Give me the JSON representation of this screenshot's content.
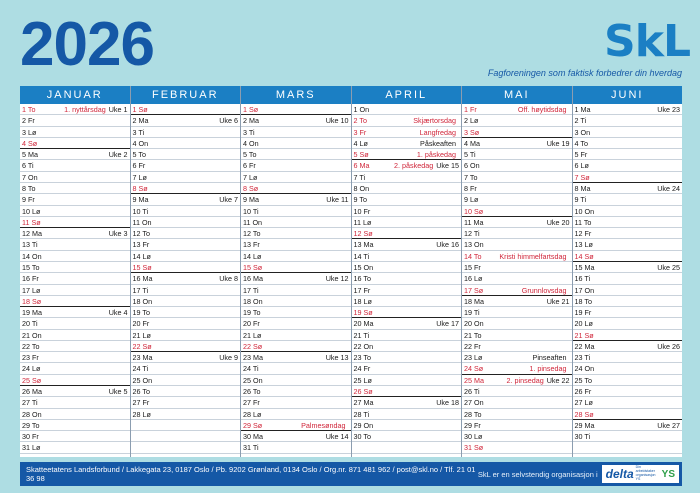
{
  "header": {
    "year": "2026",
    "logo": "SkL",
    "tagline": "Fagforeningen som faktisk forbedrer din hverdag"
  },
  "months": [
    {
      "name": "JANUAR",
      "days": [
        {
          "d": "1 To",
          "h": "1. nyttårsdag",
          "w": "Uke 1",
          "r": true
        },
        {
          "d": "2 Fr"
        },
        {
          "d": "3 Lø"
        },
        {
          "d": "4 Sø",
          "r": true,
          "e": true
        },
        {
          "d": "5 Ma",
          "w": "Uke 2"
        },
        {
          "d": "6 Ti"
        },
        {
          "d": "7 On"
        },
        {
          "d": "8 To"
        },
        {
          "d": "9 Fr"
        },
        {
          "d": "10 Lø"
        },
        {
          "d": "11 Sø",
          "r": true,
          "e": true
        },
        {
          "d": "12 Ma",
          "w": "Uke 3"
        },
        {
          "d": "13 Ti"
        },
        {
          "d": "14 On"
        },
        {
          "d": "15 To"
        },
        {
          "d": "16 Fr"
        },
        {
          "d": "17 Lø"
        },
        {
          "d": "18 Sø",
          "r": true,
          "e": true
        },
        {
          "d": "19 Ma",
          "w": "Uke 4"
        },
        {
          "d": "20 Ti"
        },
        {
          "d": "21 On"
        },
        {
          "d": "22 To"
        },
        {
          "d": "23 Fr"
        },
        {
          "d": "24 Lø"
        },
        {
          "d": "25 Sø",
          "r": true,
          "e": true
        },
        {
          "d": "26 Ma",
          "w": "Uke 5"
        },
        {
          "d": "27 Ti"
        },
        {
          "d": "28 On"
        },
        {
          "d": "29 To"
        },
        {
          "d": "30 Fr"
        },
        {
          "d": "31 Lø"
        }
      ]
    },
    {
      "name": "FEBRUAR",
      "days": [
        {
          "d": "1 Sø",
          "r": true,
          "e": true
        },
        {
          "d": "2 Ma",
          "w": "Uke 6"
        },
        {
          "d": "3 Ti"
        },
        {
          "d": "4 On"
        },
        {
          "d": "5 To"
        },
        {
          "d": "6 Fr"
        },
        {
          "d": "7 Lø"
        },
        {
          "d": "8 Sø",
          "r": true,
          "e": true
        },
        {
          "d": "9 Ma",
          "w": "Uke 7"
        },
        {
          "d": "10 Ti"
        },
        {
          "d": "11 On"
        },
        {
          "d": "12 To"
        },
        {
          "d": "13 Fr"
        },
        {
          "d": "14 Lø"
        },
        {
          "d": "15 Sø",
          "r": true,
          "e": true
        },
        {
          "d": "16 Ma",
          "w": "Uke 8"
        },
        {
          "d": "17 Ti"
        },
        {
          "d": "18 On"
        },
        {
          "d": "19 To"
        },
        {
          "d": "20 Fr"
        },
        {
          "d": "21 Lø"
        },
        {
          "d": "22 Sø",
          "r": true,
          "e": true
        },
        {
          "d": "23 Ma",
          "w": "Uke 9"
        },
        {
          "d": "24 Ti"
        },
        {
          "d": "25 On"
        },
        {
          "d": "26 To"
        },
        {
          "d": "27 Fr"
        },
        {
          "d": "28 Lø"
        },
        {
          "d": ""
        },
        {
          "d": ""
        },
        {
          "d": ""
        }
      ]
    },
    {
      "name": "MARS",
      "days": [
        {
          "d": "1 Sø",
          "r": true,
          "e": true
        },
        {
          "d": "2 Ma",
          "w": "Uke 10"
        },
        {
          "d": "3 Ti"
        },
        {
          "d": "4 On"
        },
        {
          "d": "5 To"
        },
        {
          "d": "6 Fr"
        },
        {
          "d": "7 Lø"
        },
        {
          "d": "8 Sø",
          "r": true,
          "e": true
        },
        {
          "d": "9 Ma",
          "w": "Uke 11"
        },
        {
          "d": "10 Ti"
        },
        {
          "d": "11 On"
        },
        {
          "d": "12 To"
        },
        {
          "d": "13 Fr"
        },
        {
          "d": "14 Lø"
        },
        {
          "d": "15 Sø",
          "r": true,
          "e": true
        },
        {
          "d": "16 Ma",
          "w": "Uke 12"
        },
        {
          "d": "17 Ti"
        },
        {
          "d": "18 On"
        },
        {
          "d": "19 To"
        },
        {
          "d": "20 Fr"
        },
        {
          "d": "21 Lø"
        },
        {
          "d": "22 Sø",
          "r": true,
          "e": true
        },
        {
          "d": "23 Ma",
          "w": "Uke 13"
        },
        {
          "d": "24 Ti"
        },
        {
          "d": "25 On"
        },
        {
          "d": "26 To"
        },
        {
          "d": "27 Fr"
        },
        {
          "d": "28 Lø"
        },
        {
          "d": "29 Sø",
          "h": "Palmesøndag",
          "r": true,
          "e": true
        },
        {
          "d": "30 Ma",
          "w": "Uke 14"
        },
        {
          "d": "31 Ti"
        }
      ]
    },
    {
      "name": "APRIL",
      "days": [
        {
          "d": "1 On"
        },
        {
          "d": "2 To",
          "h": "Skjærtorsdag",
          "r": true
        },
        {
          "d": "3 Fr",
          "h": "Langfredag",
          "r": true
        },
        {
          "d": "4 Lø",
          "h": "Påskeaften"
        },
        {
          "d": "5 Sø",
          "h": "1. påskedag",
          "r": true,
          "e": true
        },
        {
          "d": "6 Ma",
          "h": "2. påskedag",
          "w": "Uke 15",
          "r": true
        },
        {
          "d": "7 Ti"
        },
        {
          "d": "8 On"
        },
        {
          "d": "9 To"
        },
        {
          "d": "10 Fr"
        },
        {
          "d": "11 Lø"
        },
        {
          "d": "12 Sø",
          "r": true,
          "e": true
        },
        {
          "d": "13 Ma",
          "w": "Uke 16"
        },
        {
          "d": "14 Ti"
        },
        {
          "d": "15 On"
        },
        {
          "d": "16 To"
        },
        {
          "d": "17 Fr"
        },
        {
          "d": "18 Lø"
        },
        {
          "d": "19 Sø",
          "r": true,
          "e": true
        },
        {
          "d": "20 Ma",
          "w": "Uke 17"
        },
        {
          "d": "21 Ti"
        },
        {
          "d": "22 On"
        },
        {
          "d": "23 To"
        },
        {
          "d": "24 Fr"
        },
        {
          "d": "25 Lø"
        },
        {
          "d": "26 Sø",
          "r": true,
          "e": true
        },
        {
          "d": "27 Ma",
          "w": "Uke 18"
        },
        {
          "d": "28 Ti"
        },
        {
          "d": "29 On"
        },
        {
          "d": "30 To"
        },
        {
          "d": ""
        }
      ]
    },
    {
      "name": "MAI",
      "days": [
        {
          "d": "1 Fr",
          "h": "Off. høytidsdag",
          "r": true
        },
        {
          "d": "2 Lø"
        },
        {
          "d": "3 Sø",
          "r": true,
          "e": true
        },
        {
          "d": "4 Ma",
          "w": "Uke 19"
        },
        {
          "d": "5 Ti"
        },
        {
          "d": "6 On"
        },
        {
          "d": "7 To"
        },
        {
          "d": "8 Fr"
        },
        {
          "d": "9 Lø"
        },
        {
          "d": "10 Sø",
          "r": true,
          "e": true
        },
        {
          "d": "11 Ma",
          "w": "Uke 20"
        },
        {
          "d": "12 Ti"
        },
        {
          "d": "13 On"
        },
        {
          "d": "14 To",
          "h": "Kristi himmelfartsdag",
          "r": true
        },
        {
          "d": "15 Fr"
        },
        {
          "d": "16 Lø"
        },
        {
          "d": "17 Sø",
          "h": "Grunnlovsdag",
          "r": true,
          "e": true
        },
        {
          "d": "18 Ma",
          "w": "Uke 21"
        },
        {
          "d": "19 Ti"
        },
        {
          "d": "20 On"
        },
        {
          "d": "21 To"
        },
        {
          "d": "22 Fr"
        },
        {
          "d": "23 Lø",
          "h": "Pinseaften"
        },
        {
          "d": "24 Sø",
          "h": "1. pinsedag",
          "r": true,
          "e": true
        },
        {
          "d": "25 Ma",
          "h": "2. pinsedag",
          "w": "Uke 22",
          "r": true
        },
        {
          "d": "26 Ti"
        },
        {
          "d": "27 On"
        },
        {
          "d": "28 To"
        },
        {
          "d": "29 Fr"
        },
        {
          "d": "30 Lø"
        },
        {
          "d": "31 Sø",
          "r": true
        }
      ]
    },
    {
      "name": "JUNI",
      "days": [
        {
          "d": "1 Ma",
          "w": "Uke 23"
        },
        {
          "d": "2 Ti"
        },
        {
          "d": "3 On"
        },
        {
          "d": "4 To"
        },
        {
          "d": "5 Fr"
        },
        {
          "d": "6 Lø"
        },
        {
          "d": "7 Sø",
          "r": true,
          "e": true
        },
        {
          "d": "8 Ma",
          "w": "Uke 24"
        },
        {
          "d": "9 Ti"
        },
        {
          "d": "10 On"
        },
        {
          "d": "11 To"
        },
        {
          "d": "12 Fr"
        },
        {
          "d": "13 Lø"
        },
        {
          "d": "14 Sø",
          "r": true,
          "e": true
        },
        {
          "d": "15 Ma",
          "w": "Uke 25"
        },
        {
          "d": "16 Ti"
        },
        {
          "d": "17 On"
        },
        {
          "d": "18 To"
        },
        {
          "d": "19 Fr"
        },
        {
          "d": "20 Lø"
        },
        {
          "d": "21 Sø",
          "r": true,
          "e": true
        },
        {
          "d": "22 Ma",
          "w": "Uke 26"
        },
        {
          "d": "23 Ti"
        },
        {
          "d": "24 On"
        },
        {
          "d": "25 To"
        },
        {
          "d": "26 Fr"
        },
        {
          "d": "27 Lø"
        },
        {
          "d": "28 Sø",
          "r": true,
          "e": true
        },
        {
          "d": "29 Ma",
          "w": "Uke 27"
        },
        {
          "d": "30 Ti"
        },
        {
          "d": ""
        }
      ]
    }
  ],
  "footer": {
    "address": "Skatteetatens Landsforbund / Lakkegata 23, 0187 Oslo / Pb. 9202 Grønland, 0134 Oslo / Org.nr. 871 481 962 / post@skl.no / Tlf. 21 01 36 98",
    "independent": "SkL er en selvstendig organisasjon i",
    "delta_logo": "delta",
    "delta_sub": "Din arbeidstaker organisasjon YS",
    "ys_mark": "YS"
  },
  "colors": {
    "blue": "#1558a6",
    "logo_blue": "#1b7fc4",
    "red": "#d0263a",
    "background": "#aedde3"
  }
}
